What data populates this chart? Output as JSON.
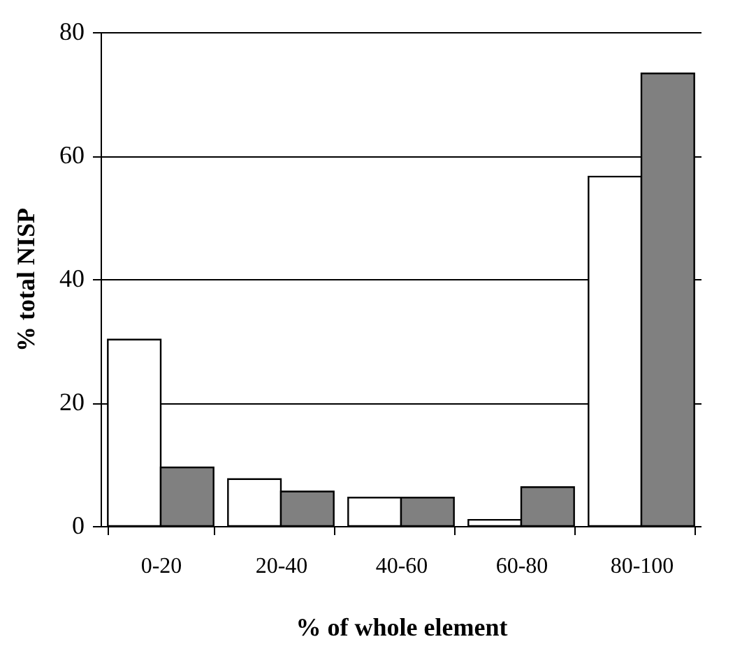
{
  "chart_data": {
    "type": "bar",
    "xlabel": "% of whole element",
    "ylabel": "% total NISP",
    "categories": [
      "0-20",
      "20-40",
      "40-60",
      "60-80",
      "80-100"
    ],
    "series": [
      {
        "color": "#ffffff",
        "values": [
          30.2,
          7.6,
          4.6,
          1.0,
          56.6
        ]
      },
      {
        "color": "#808080",
        "values": [
          9.5,
          5.6,
          4.6,
          6.3,
          73.3
        ]
      }
    ],
    "ylim": [
      0,
      80
    ],
    "yticks": [
      0,
      20,
      40,
      60,
      80
    ],
    "grid": "y"
  }
}
